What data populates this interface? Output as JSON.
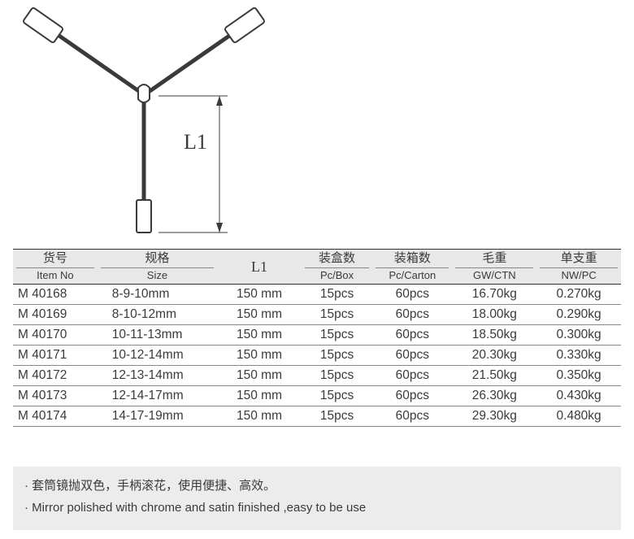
{
  "diagram": {
    "label": "L1",
    "stroke_color": "#3a3a3a",
    "stroke_width": 2,
    "fill_color": "#ffffff"
  },
  "table": {
    "columns": [
      {
        "cn": "货号",
        "en": "Item No",
        "cls": "col-itemno"
      },
      {
        "cn": "规格",
        "en": "Size",
        "cls": "col-size"
      },
      {
        "cn": "",
        "en": "L1",
        "cls": "col-l1",
        "l1": true
      },
      {
        "cn": "装盒数",
        "en": "Pc/Box",
        "cls": "col-pcbox"
      },
      {
        "cn": "装箱数",
        "en": "Pc/Carton",
        "cls": "col-pccar"
      },
      {
        "cn": "毛重",
        "en": "GW/CTN",
        "cls": "col-gw"
      },
      {
        "cn": "单支重",
        "en": "NW/PC",
        "cls": "col-nw"
      }
    ],
    "rows": [
      [
        "M 40168",
        "8-9-10mm",
        "150 mm",
        "15pcs",
        "60pcs",
        "16.70kg",
        "0.270kg"
      ],
      [
        "M 40169",
        "8-10-12mm",
        "150 mm",
        "15pcs",
        "60pcs",
        "18.00kg",
        "0.290kg"
      ],
      [
        "M 40170",
        "10-11-13mm",
        "150 mm",
        "15pcs",
        "60pcs",
        "18.50kg",
        "0.300kg"
      ],
      [
        "M 40171",
        "10-12-14mm",
        "150 mm",
        "15pcs",
        "60pcs",
        "20.30kg",
        "0.330kg"
      ],
      [
        "M 40172",
        "12-13-14mm",
        "150 mm",
        "15pcs",
        "60pcs",
        "21.50kg",
        "0.350kg"
      ],
      [
        "M 40173",
        "12-14-17mm",
        "150 mm",
        "15pcs",
        "60pcs",
        "26.30kg",
        "0.430kg"
      ],
      [
        "M 40174",
        "14-17-19mm",
        "150 mm",
        "15pcs",
        "60pcs",
        "29.30kg",
        "0.480kg"
      ]
    ],
    "header_bg": "#e8e8e8",
    "border_color": "#333333",
    "row_border_color": "#888888",
    "font_size": 15.5
  },
  "notes": {
    "bullet": "·",
    "lines": [
      "套筒镜抛双色，手柄滚花，使用便捷、高效。",
      "Mirror polished with chrome and satin finished ,easy to be use"
    ],
    "background": "#ececec"
  }
}
